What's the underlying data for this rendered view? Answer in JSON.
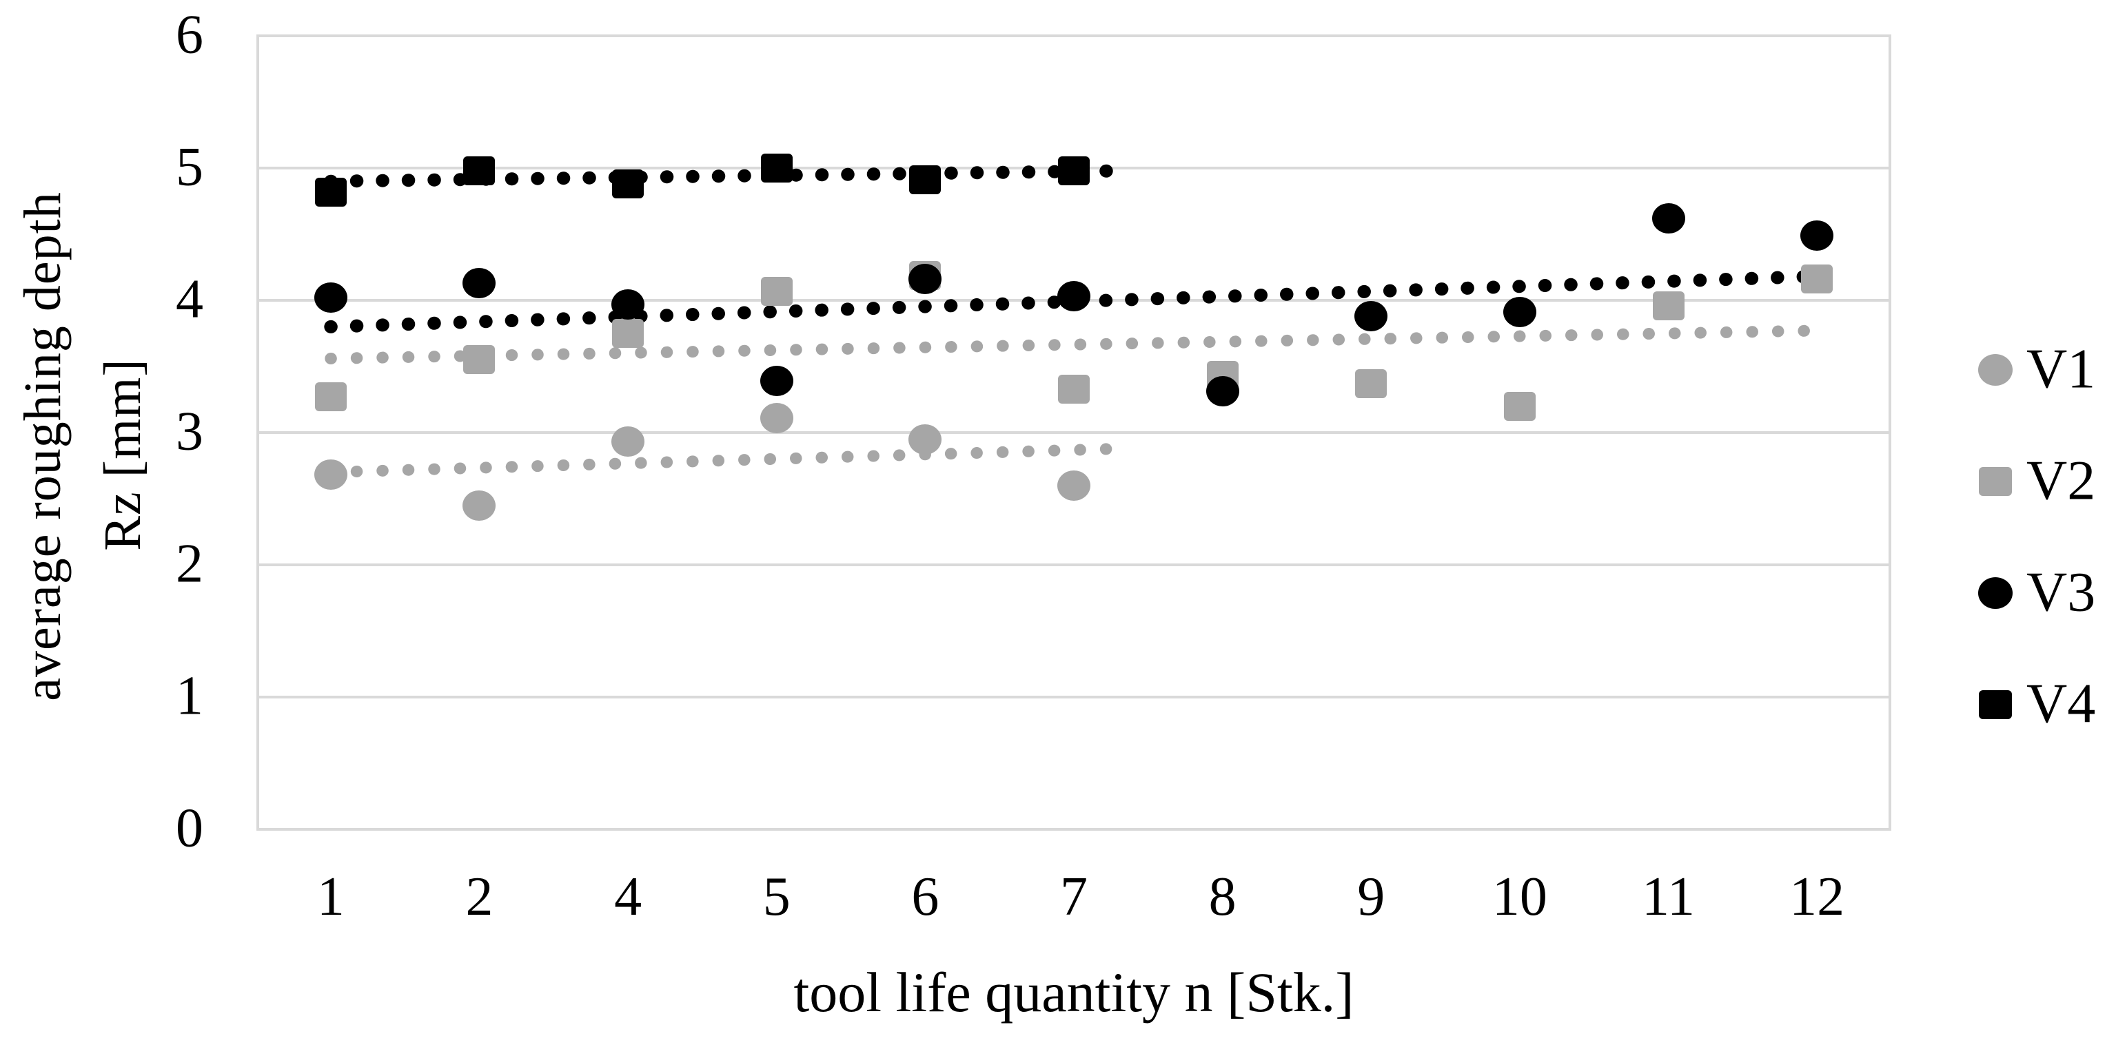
{
  "chart_data": {
    "type": "scatter",
    "title": "",
    "xlabel": "tool life quantity n [Stk.]",
    "ylabel_line1": "average roughing depth",
    "ylabel_line2": "Rz [mm]",
    "categories": [
      "1",
      "2",
      "4",
      "5",
      "6",
      "7",
      "8",
      "9",
      "10",
      "11",
      "12"
    ],
    "y_ticks": [
      0,
      1,
      2,
      3,
      4,
      5,
      6
    ],
    "ylim": [
      0,
      6
    ],
    "grid": true,
    "legend_position": "right",
    "colors": {
      "series_gray": "#a6a6a6",
      "series_black": "#000000",
      "gridline": "#d9d9d9",
      "background": "#ffffff",
      "text": "#000000"
    },
    "series": [
      {
        "name": "V1",
        "marker": "circle",
        "color": "#a6a6a6",
        "values": [
          2.68,
          2.45,
          2.93,
          3.11,
          2.95,
          2.6,
          null,
          null,
          null,
          null,
          null
        ]
      },
      {
        "name": "V2",
        "marker": "square",
        "color": "#a6a6a6",
        "values": [
          3.27,
          3.55,
          3.75,
          4.07,
          4.19,
          3.33,
          3.43,
          3.37,
          3.2,
          3.96,
          4.16
        ]
      },
      {
        "name": "V3",
        "marker": "circle",
        "color": "#000000",
        "values": [
          4.02,
          4.13,
          3.97,
          3.39,
          4.16,
          4.03,
          3.31,
          3.88,
          3.91,
          4.62,
          4.49
        ]
      },
      {
        "name": "V4",
        "marker": "square",
        "color": "#000000",
        "values": [
          4.82,
          4.98,
          4.88,
          5.0,
          4.91,
          4.98,
          null,
          null,
          null,
          null,
          null
        ]
      }
    ],
    "trendlines": [
      {
        "series": "V1",
        "style": "dotted",
        "color": "#a6a6a6",
        "from_slot": 1.0,
        "to_slot": 6.35,
        "from_value": 2.7,
        "to_value": 2.88
      },
      {
        "series": "V2",
        "style": "dotted",
        "color": "#a6a6a6",
        "from_slot": 1.0,
        "to_slot": 10.95,
        "from_value": 3.56,
        "to_value": 3.77
      },
      {
        "series": "V3",
        "style": "dotted",
        "color": "#000000",
        "from_slot": 1.0,
        "to_slot": 10.95,
        "from_value": 3.8,
        "to_value": 4.18
      },
      {
        "series": "V4",
        "style": "dotted",
        "color": "#000000",
        "from_slot": 1.0,
        "to_slot": 6.35,
        "from_value": 4.9,
        "to_value": 4.98
      }
    ]
  }
}
